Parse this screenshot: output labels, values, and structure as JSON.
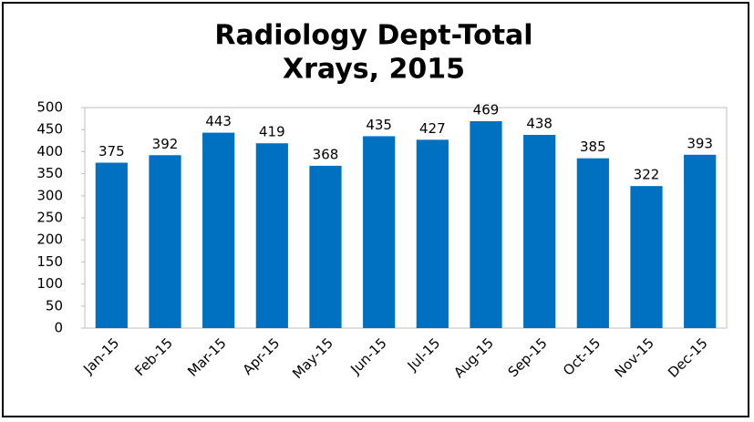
{
  "chart_data": {
    "type": "bar",
    "title": [
      "Radiology Dept-Total",
      "Xrays, 2015"
    ],
    "categories": [
      "Jan-15",
      "Feb-15",
      "Mar-15",
      "Apr-15",
      "May-15",
      "Jun-15",
      "Jul-15",
      "Aug-15",
      "Sep-15",
      "Oct-15",
      "Nov-15",
      "Dec-15"
    ],
    "values": [
      375,
      392,
      443,
      419,
      368,
      435,
      427,
      469,
      438,
      385,
      322,
      393
    ],
    "color": "#0070c0",
    "ylim": [
      0,
      500
    ],
    "yticks": [
      0,
      50,
      100,
      150,
      200,
      250,
      300,
      350,
      400,
      450,
      500
    ],
    "grid": false
  }
}
